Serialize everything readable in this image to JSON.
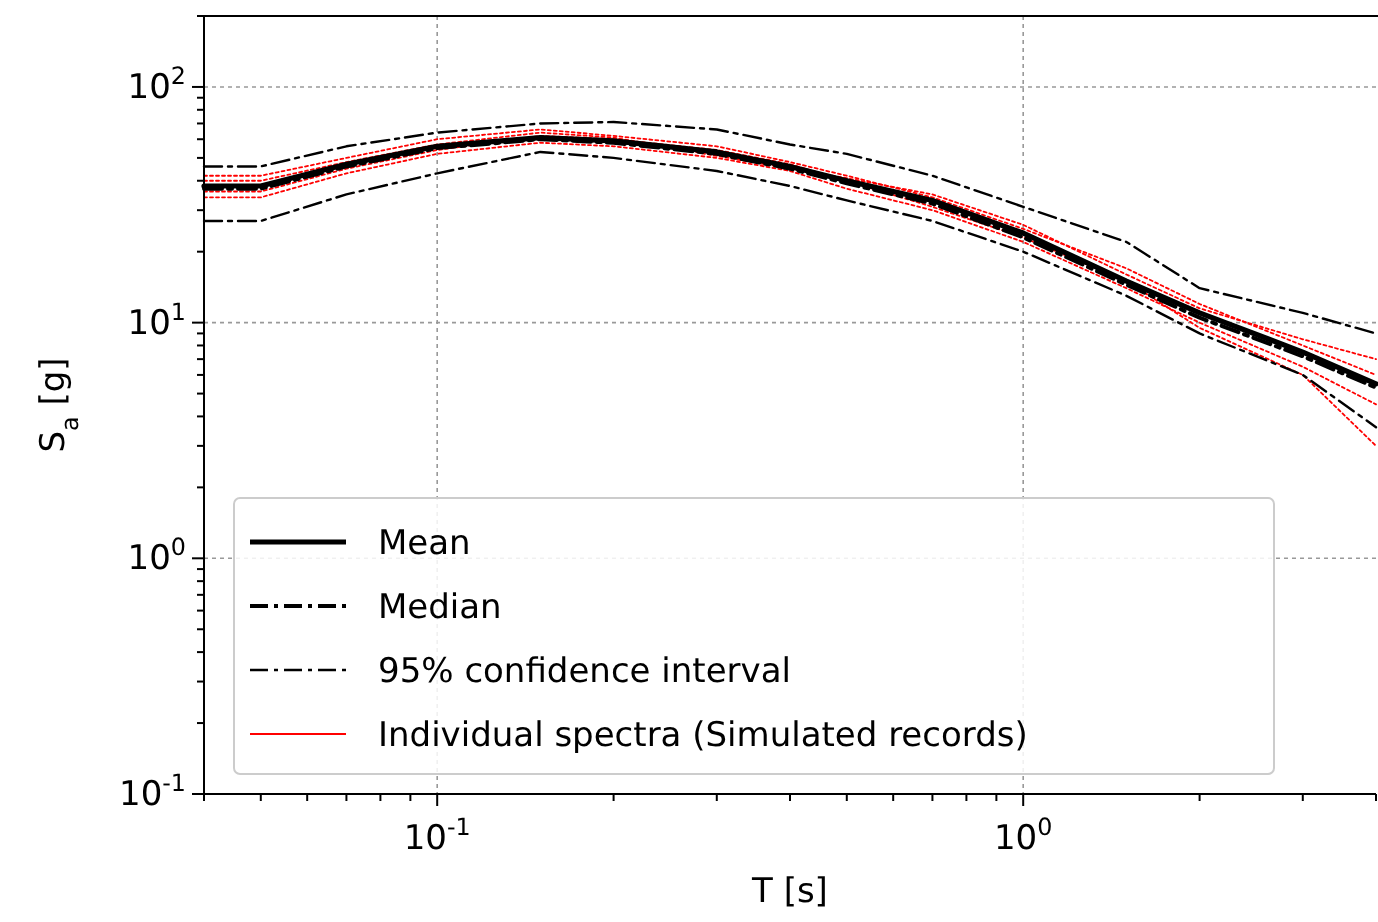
{
  "chart_data": {
    "type": "line",
    "xlabel": "T [s]",
    "ylabel": "S$_{a}$ [g]",
    "log": "xy",
    "grid": true,
    "legend": "bottom left",
    "x": [
      0.04,
      0.05,
      0.07,
      0.1,
      0.15,
      0.2,
      0.3,
      0.4,
      0.5,
      0.7,
      1,
      1.5,
      2,
      3,
      4
    ],
    "xlim": [
      0.04,
      4
    ],
    "ylim": [
      0.1,
      200
    ],
    "xticks": [
      {
        "value": 0.04,
        "label": null
      },
      {
        "value": 0.05,
        "label": null
      },
      {
        "value": 0.06,
        "label": null
      },
      {
        "value": 0.07,
        "label": null
      },
      {
        "value": 0.08,
        "label": null
      },
      {
        "value": 0.09,
        "label": null
      },
      {
        "value": 0.1,
        "label": "10$^{-1}$"
      },
      {
        "value": 0.2,
        "label": null
      },
      {
        "value": 0.3,
        "label": null
      },
      {
        "value": 0.4,
        "label": null
      },
      {
        "value": 0.5,
        "label": null
      },
      {
        "value": 0.6,
        "label": null
      },
      {
        "value": 0.7,
        "label": null
      },
      {
        "value": 0.8,
        "label": null
      },
      {
        "value": 0.9,
        "label": null
      },
      {
        "value": 1,
        "label": "10$^{0}$"
      },
      {
        "value": 2,
        "label": null
      },
      {
        "value": 3,
        "label": null
      },
      {
        "value": 4,
        "label": null
      }
    ],
    "yticks": [
      {
        "value": 0.1,
        "label": "10$^{-1}$"
      },
      {
        "value": 0.2,
        "label": null
      },
      {
        "value": 0.3,
        "label": null
      },
      {
        "value": 0.4,
        "label": null
      },
      {
        "value": 0.5,
        "label": null
      },
      {
        "value": 0.6,
        "label": null
      },
      {
        "value": 0.7,
        "label": null
      },
      {
        "value": 0.8,
        "label": null
      },
      {
        "value": 0.9,
        "label": null
      },
      {
        "value": 1,
        "label": "10$^{0}$"
      },
      {
        "value": 2,
        "label": null
      },
      {
        "value": 3,
        "label": null
      },
      {
        "value": 4,
        "label": null
      },
      {
        "value": 5,
        "label": null
      },
      {
        "value": 6,
        "label": null
      },
      {
        "value": 7,
        "label": null
      },
      {
        "value": 8,
        "label": null
      },
      {
        "value": 9,
        "label": null
      },
      {
        "value": 10,
        "label": "10$^{1}$"
      },
      {
        "value": 20,
        "label": null
      },
      {
        "value": 30,
        "label": null
      },
      {
        "value": 40,
        "label": null
      },
      {
        "value": 50,
        "label": null
      },
      {
        "value": 60,
        "label": null
      },
      {
        "value": 70,
        "label": null
      },
      {
        "value": 80,
        "label": null
      },
      {
        "value": 90,
        "label": null
      },
      {
        "value": 100,
        "label": "10$^{2}$"
      },
      {
        "value": 200,
        "label": null
      }
    ],
    "series": [
      {
        "color": "#ff0000",
        "line_style": "dotted",
        "values": [
          42,
          42,
          50,
          60,
          66,
          62,
          56,
          48,
          42,
          34,
          25,
          17,
          12,
          8,
          6
        ]
      },
      {
        "color": "#ff0000",
        "line_style": "dotted",
        "values": [
          34,
          34,
          43,
          52,
          58,
          56,
          50,
          44,
          37,
          30,
          22,
          14,
          10,
          6.5,
          4.5
        ]
      },
      {
        "color": "#ff0000",
        "line_style": "dotted",
        "values": [
          36,
          36,
          45,
          54,
          62,
          60,
          54,
          47,
          40,
          31,
          23,
          15,
          9.5,
          6,
          3
        ]
      },
      {
        "name": "Individual spectra (Simulated records)",
        "color": "#ff0000",
        "line_style": "dotted",
        "values": [
          40,
          40,
          48,
          57,
          64,
          61,
          51,
          45,
          41,
          35,
          26,
          16,
          11.5,
          8.5,
          7
        ]
      },
      {
        "name": "Mean",
        "color": "#000000",
        "line_style": "solid",
        "values": [
          38,
          38,
          47,
          56,
          61,
          59,
          53,
          46,
          40,
          33,
          24,
          15,
          11,
          7.5,
          5.5
        ]
      },
      {
        "name": "Median",
        "color": "#000000",
        "line_style": "dashed",
        "values": [
          37,
          37,
          46,
          55,
          60,
          58,
          52,
          45,
          39,
          32,
          23,
          14.5,
          10.5,
          7.2,
          5.3
        ]
      },
      {
        "name": "95% confidence interval",
        "color": "#000000",
        "line_style": "dashed",
        "values": [
          46,
          46,
          56,
          64,
          70,
          71,
          66,
          57,
          52,
          42,
          31,
          22,
          14,
          11,
          9
        ]
      },
      {
        "color": "#000000",
        "line_style": "dashed",
        "values": [
          27,
          27,
          35,
          43,
          53,
          50,
          44,
          38,
          33,
          27,
          20,
          13,
          9,
          6,
          3.6
        ]
      }
    ]
  }
}
